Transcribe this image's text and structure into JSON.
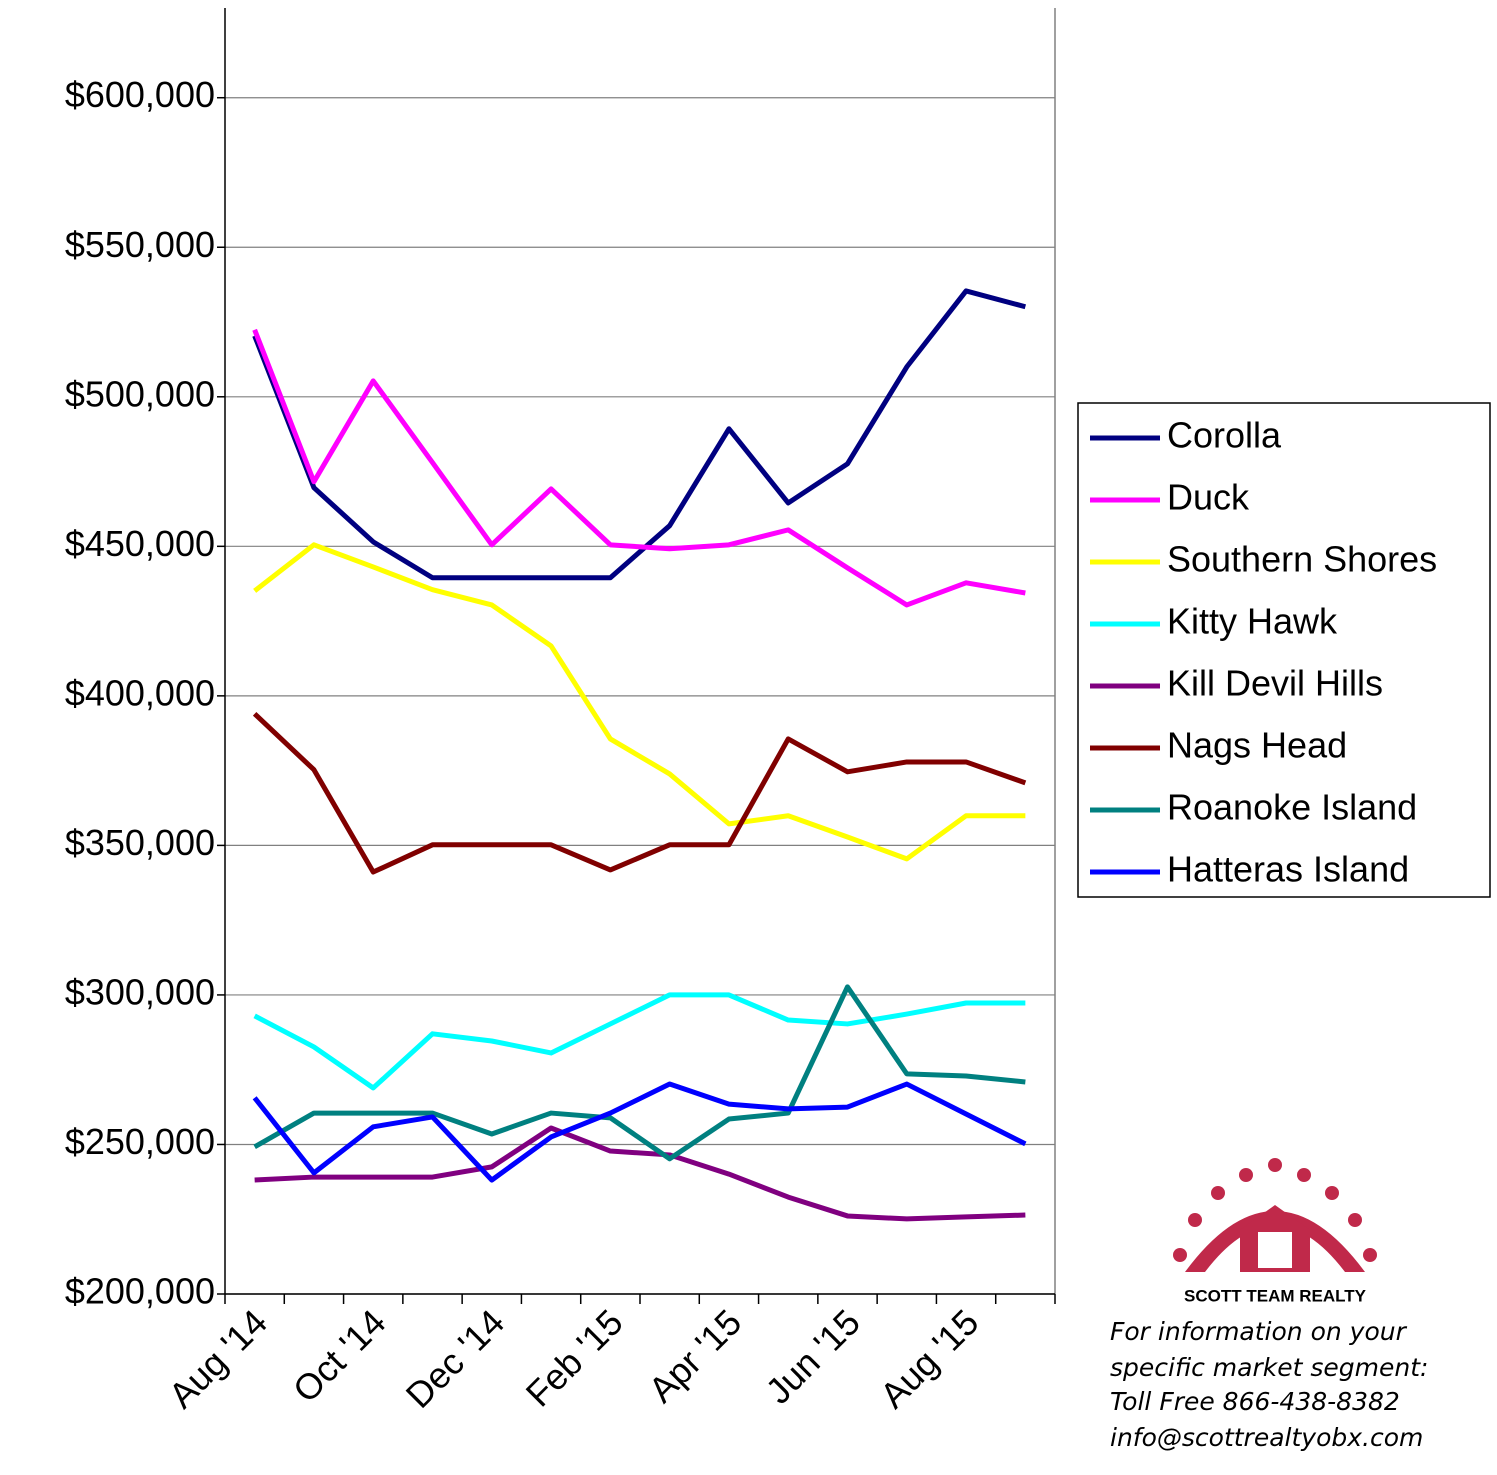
{
  "chart_data": {
    "type": "line",
    "categories": [
      "Aug '14",
      null,
      "Oct '14",
      null,
      "Dec '14",
      null,
      "Feb '15",
      null,
      "Apr '15",
      null,
      "Jun '15",
      null,
      "Aug '15",
      null
    ],
    "series": [
      {
        "name": "Corolla",
        "color": "#000080",
        "values": [
          520400,
          469600,
          451500,
          439500,
          439500,
          439500,
          439500,
          456900,
          489300,
          464500,
          477600,
          510000,
          535400,
          530100
        ]
      },
      {
        "name": "Duck",
        "color": "#ff00ff",
        "values": [
          522400,
          471600,
          505300,
          478000,
          450500,
          469200,
          450500,
          449200,
          450500,
          455500,
          442800,
          430400,
          437800,
          434400
        ]
      },
      {
        "name": "Southern Shores",
        "color": "#ffff00",
        "values": [
          435100,
          450500,
          443100,
          435500,
          430400,
          416700,
          385600,
          373900,
          357200,
          359900,
          352800,
          345500,
          359900,
          359900
        ]
      },
      {
        "name": "Kitty Hawk",
        "color": "#00ffff",
        "values": [
          293000,
          282600,
          268900,
          287000,
          284600,
          280600,
          290300,
          300000,
          300000,
          291600,
          290300,
          293600,
          297300,
          297300
        ]
      },
      {
        "name": "Kill Devil Hills",
        "color": "#800080",
        "values": [
          238100,
          239100,
          239100,
          239100,
          242500,
          255500,
          247800,
          246500,
          240100,
          232400,
          226100,
          225100,
          225800,
          226400
        ]
      },
      {
        "name": "Nags Head",
        "color": "#800000",
        "values": [
          394000,
          375300,
          341100,
          350200,
          350200,
          350200,
          341800,
          350200,
          350200,
          385600,
          374600,
          377900,
          377900,
          370900
        ]
      },
      {
        "name": "Roanoke Island",
        "color": "#008080",
        "values": [
          249200,
          260500,
          260500,
          260500,
          253500,
          260500,
          258900,
          245200,
          258500,
          260500,
          302700,
          273600,
          272900,
          270900
        ]
      },
      {
        "name": "Hatteras Island",
        "color": "#0000ff",
        "values": [
          265600,
          240500,
          255900,
          259200,
          238100,
          252500,
          260500,
          270200,
          263500,
          261900,
          262500,
          270200,
          260200,
          250200
        ]
      }
    ],
    "ylim": [
      200000,
      630000
    ],
    "yticks": [
      {
        "value": 200000,
        "label": "$200,000"
      },
      {
        "value": 250000,
        "label": "$250,000"
      },
      {
        "value": 300000,
        "label": "$300,000"
      },
      {
        "value": 350000,
        "label": "$350,000"
      },
      {
        "value": 400000,
        "label": "$400,000"
      },
      {
        "value": 450000,
        "label": "$450,000"
      },
      {
        "value": 500000,
        "label": "$500,000"
      },
      {
        "value": 550000,
        "label": "$550,000"
      },
      {
        "value": 600000,
        "label": "$600,000"
      }
    ],
    "grid": true,
    "legend": "right",
    "annotations": [
      "SCOTT TEAM REALTY",
      "For information on your",
      "specific market segment:",
      "Toll Free 866-438-8382",
      "info@scottrealtyobx.com"
    ]
  }
}
